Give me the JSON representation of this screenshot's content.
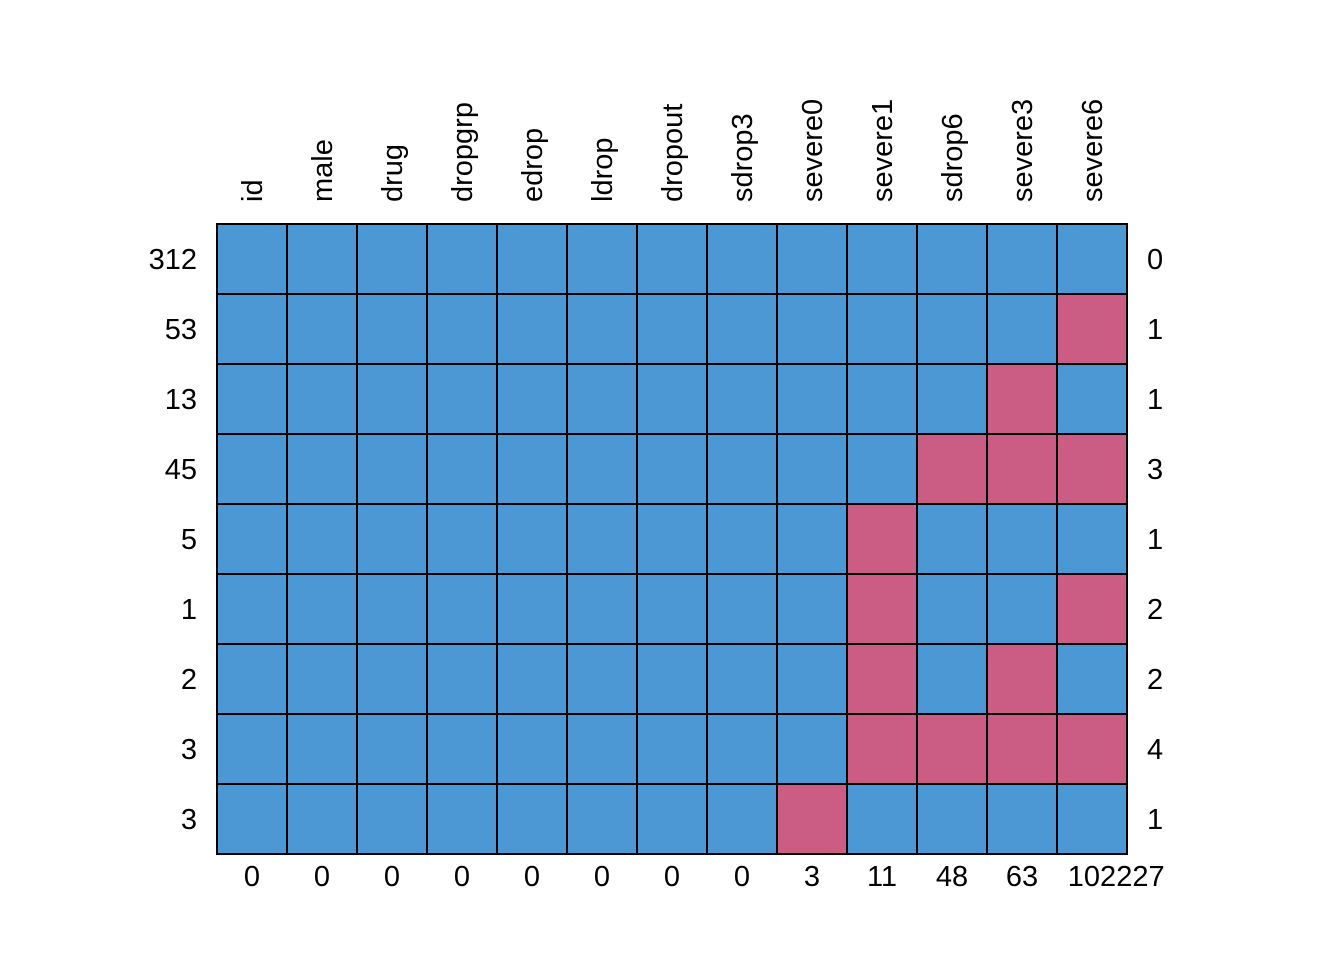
{
  "chart_data": {
    "type": "heatmap",
    "title": "",
    "xlabel": "",
    "ylabel": "",
    "columns": [
      "id",
      "male",
      "drug",
      "dropgrp",
      "edrop",
      "ldrop",
      "dropout",
      "sdrop3",
      "severe0",
      "severe1",
      "sdrop6",
      "severe3",
      "severe6"
    ],
    "row_counts": [
      "312",
      "53",
      "13",
      "45",
      "5",
      "1",
      "2",
      "3",
      "3"
    ],
    "row_missing": [
      "0",
      "1",
      "1",
      "3",
      "1",
      "2",
      "2",
      "4",
      "1"
    ],
    "column_missing": [
      "0",
      "0",
      "0",
      "0",
      "0",
      "0",
      "0",
      "0",
      "3",
      "11",
      "48",
      "63",
      "102"
    ],
    "total_missing": "227",
    "matrix": [
      [
        1,
        1,
        1,
        1,
        1,
        1,
        1,
        1,
        1,
        1,
        1,
        1,
        1
      ],
      [
        1,
        1,
        1,
        1,
        1,
        1,
        1,
        1,
        1,
        1,
        1,
        1,
        0
      ],
      [
        1,
        1,
        1,
        1,
        1,
        1,
        1,
        1,
        1,
        1,
        1,
        0,
        1
      ],
      [
        1,
        1,
        1,
        1,
        1,
        1,
        1,
        1,
        1,
        1,
        0,
        0,
        0
      ],
      [
        1,
        1,
        1,
        1,
        1,
        1,
        1,
        1,
        1,
        0,
        1,
        1,
        1
      ],
      [
        1,
        1,
        1,
        1,
        1,
        1,
        1,
        1,
        1,
        0,
        1,
        1,
        0
      ],
      [
        1,
        1,
        1,
        1,
        1,
        1,
        1,
        1,
        1,
        0,
        1,
        0,
        1
      ],
      [
        1,
        1,
        1,
        1,
        1,
        1,
        1,
        1,
        1,
        0,
        0,
        0,
        0
      ],
      [
        1,
        1,
        1,
        1,
        1,
        1,
        1,
        1,
        0,
        1,
        1,
        1,
        1
      ]
    ],
    "colors": {
      "observed": "#4B98D4",
      "missing": "#CB5C83",
      "grid": "#000000"
    }
  }
}
